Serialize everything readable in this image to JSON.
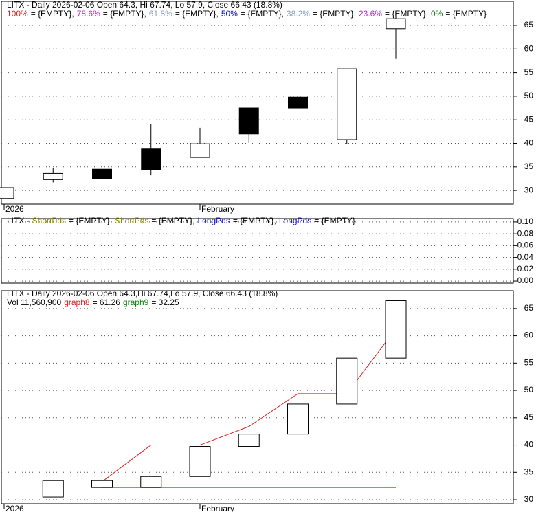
{
  "chart_data": [
    {
      "type": "candlestick",
      "title": "LITX - Daily 2026-02-06 Open 64.3, Hi 67.74, Lo 57.9, Close 66.43 (18.8%)",
      "legend": [
        {
          "name": "100%",
          "color": "#e02020",
          "text": "= {EMPTY},"
        },
        {
          "name": "78.6%",
          "color": "#cc22cc",
          "text": "= {EMPTY},"
        },
        {
          "name": "61.8%",
          "color": "#8aa0c0",
          "text": "= {EMPTY},"
        },
        {
          "name": "50%",
          "color": "#1010cc",
          "text": "= {EMPTY},"
        },
        {
          "name": "38.2%",
          "color": "#8aa0c0",
          "text": "= {EMPTY},"
        },
        {
          "name": "23.6%",
          "color": "#cc22cc",
          "text": "= {EMPTY},"
        },
        {
          "name": "0%",
          "color": "#108010",
          "text": "= {EMPTY}"
        }
      ],
      "categories": [
        "2026",
        null,
        null,
        null,
        "February",
        null,
        null,
        null,
        null
      ],
      "open": [
        28.3,
        32.3,
        34.5,
        38.8,
        37.0,
        47.5,
        49.8,
        40.8,
        64.3
      ],
      "high": [
        30.6,
        34.8,
        35.3,
        44.1,
        43.3,
        47.5,
        54.9,
        55.8,
        67.74
      ],
      "low": [
        28.3,
        31.7,
        30.0,
        33.2,
        37.0,
        40.1,
        40.2,
        39.8,
        57.9
      ],
      "close": [
        30.6,
        33.6,
        32.5,
        34.4,
        39.9,
        42.0,
        47.5,
        55.8,
        66.43
      ],
      "up_color": "#ffffff",
      "down_color": "#000000",
      "ylim": [
        27.1,
        70.1
      ],
      "yticks": [
        30,
        35,
        40,
        45,
        50,
        55,
        60,
        65
      ],
      "grid": true
    },
    {
      "type": "indicator",
      "title": "LITX -",
      "legend": [
        {
          "name": "ShortPds",
          "color": "#8a8a00",
          "text": "= {EMPTY},"
        },
        {
          "name": "ShortPds",
          "color": "#8a8a00",
          "text": "= {EMPTY},"
        },
        {
          "name": "LongPds",
          "color": "#1010cc",
          "text": "= {EMPTY},"
        },
        {
          "name": "LongPds",
          "color": "#1010cc",
          "text": "= {EMPTY}"
        }
      ],
      "ylim": [
        -0.0034,
        0.1057
      ],
      "yticks": [
        {
          "value": 0,
          "label": "0.00"
        },
        0.02,
        0.04,
        0.06,
        0.08,
        {
          "value": 0.1,
          "label": "0.10"
        }
      ],
      "grid": true
    },
    {
      "type": "box",
      "title": "LITX - Daily 2026-02-06 Open 64.3,Hi 67.74,Lo 57.9, Close 66.43 (18.8%)",
      "subtitle": "Vol 11,560,900",
      "categories": [
        "2026",
        null,
        null,
        null,
        "February",
        null,
        null,
        null,
        null
      ],
      "open": [
        null,
        30.5,
        32.25,
        32.25,
        34.25,
        39.75,
        42.0,
        47.5,
        55.9
      ],
      "close": [
        null,
        33.5,
        33.5,
        34.25,
        39.75,
        42.0,
        47.5,
        55.9,
        66.43
      ],
      "series": [
        {
          "name": "graph8",
          "color": "#e02020",
          "legend_text": "= 61.26",
          "values": [
            null,
            null,
            33.3,
            40.0,
            40.0,
            43.4,
            49.4,
            49.4,
            61.26
          ]
        },
        {
          "name": "graph9",
          "color": "#108010",
          "legend_text": "= 32.25",
          "values": [
            null,
            null,
            32.25,
            32.25,
            32.25,
            32.25,
            32.25,
            32.25,
            32.25
          ]
        }
      ],
      "ylim": [
        29.25,
        68.25
      ],
      "yticks": [
        30,
        35,
        40,
        45,
        50,
        55,
        60,
        65
      ],
      "grid": true
    }
  ]
}
